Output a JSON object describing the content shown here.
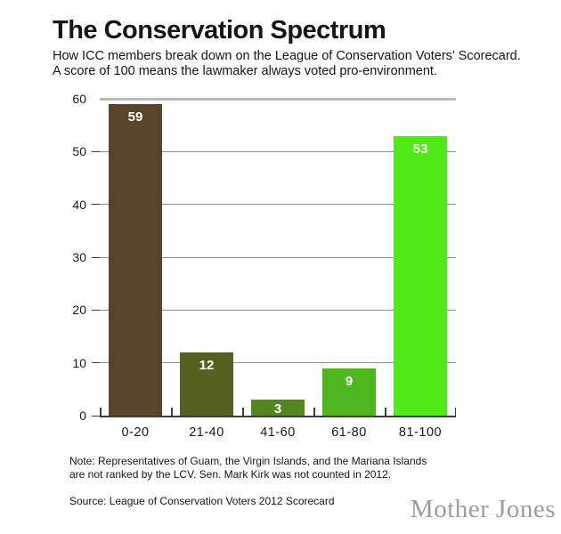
{
  "header": {
    "title": "The Conservation Spectrum",
    "subtitle_line1": "How ICC members break down on the League of Conservation Voters’ Scorecard.",
    "subtitle_line2": "A score of 100 means the lawmaker always voted pro-environment."
  },
  "chart_data": {
    "type": "bar",
    "categories": [
      "0-20",
      "21-40",
      "41-60",
      "61-80",
      "81-100"
    ],
    "values": [
      59,
      12,
      3,
      9,
      53
    ],
    "bar_colors": [
      "#5a432b",
      "#556021",
      "#53871e",
      "#4cb71e",
      "#52e91b"
    ],
    "y_ticks": [
      0,
      10,
      20,
      30,
      40,
      50,
      60
    ],
    "ylim": [
      0,
      60
    ],
    "grid": true,
    "legend": "none",
    "title": "The Conservation Spectrum",
    "xlabel": "",
    "ylabel": ""
  },
  "colors": {
    "grid_line": "#8f8f8f",
    "top_grid_line": "#b9b9b9",
    "axis_line": "#3d3d3d",
    "value_label": "#ffffff",
    "logo_gray": "#9b9da0"
  },
  "footer": {
    "note_line1": "Note: Representatives of Guam, the Virgin Islands, and the Mariana Islands",
    "note_line2": "are not ranked by the LCV. Sen. Mark Kirk was not counted in 2012.",
    "source": "Source: League of Conservation Voters 2012 Scorecard",
    "logo": "Mother Jones"
  }
}
